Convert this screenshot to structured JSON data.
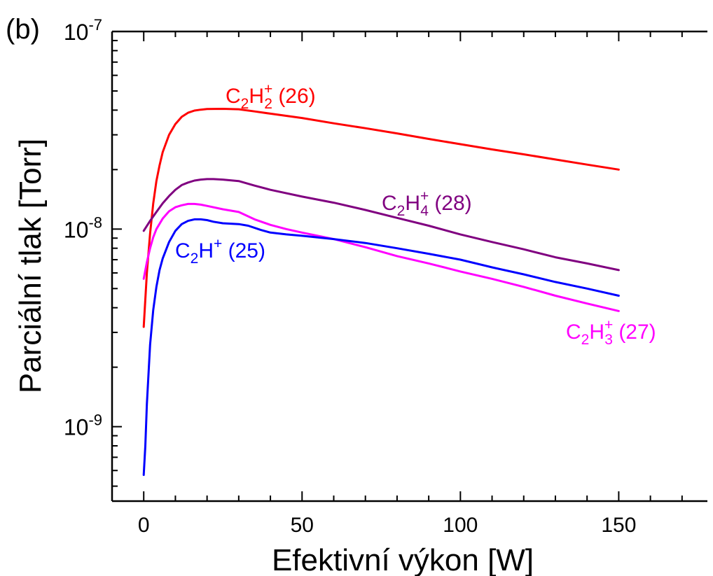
{
  "panel_label": "(b)",
  "chart_data": {
    "type": "line",
    "xlabel": "Efektivní výkon [W]",
    "ylabel": "Parciální tlak [Torr]",
    "x_scale": "linear",
    "y_scale": "log",
    "xlim": [
      -10,
      178
    ],
    "ylim": [
      4.2e-10,
      1e-07
    ],
    "x_ticks": [
      0,
      50,
      100,
      150
    ],
    "x_tick_labels": [
      "0",
      "50",
      "100",
      "150"
    ],
    "y_ticks": [
      1e-09,
      1e-08,
      1e-07
    ],
    "y_tick_labels": [
      {
        "base": "10",
        "exp": "-9"
      },
      {
        "base": "10",
        "exp": "-8"
      },
      {
        "base": "10",
        "exp": "-7"
      }
    ],
    "grid": false,
    "series": [
      {
        "id": "c2h2",
        "color": "#ff0000",
        "label": {
          "parts": [
            [
              "C",
              ""
            ],
            [
              "2",
              "sub"
            ],
            [
              "H",
              ""
            ],
            [
              "2",
              "subsup",
              "+"
            ],
            [
              " (26)",
              ""
            ]
          ]
        },
        "x": [
          0,
          1,
          2,
          3,
          4,
          5,
          6,
          8,
          10,
          12,
          14,
          16,
          18,
          20,
          25,
          30,
          35,
          40,
          50,
          60,
          70,
          80,
          90,
          100,
          110,
          120,
          130,
          140,
          150
        ],
        "y": [
          3.2e-09,
          6e-09,
          9.5e-09,
          1.35e-08,
          1.75e-08,
          2.1e-08,
          2.45e-08,
          3e-08,
          3.4e-08,
          3.7e-08,
          3.88e-08,
          3.98e-08,
          4.02e-08,
          4.05e-08,
          4.06e-08,
          4.04e-08,
          3.94e-08,
          3.84e-08,
          3.65e-08,
          3.43e-08,
          3.24e-08,
          3.05e-08,
          2.86e-08,
          2.69e-08,
          2.53e-08,
          2.39e-08,
          2.25e-08,
          2.12e-08,
          2e-08
        ]
      },
      {
        "id": "c2h4",
        "color": "#800080",
        "label": {
          "parts": [
            [
              "C",
              ""
            ],
            [
              "2",
              "sub"
            ],
            [
              "H",
              ""
            ],
            [
              "4",
              "subsup",
              "+"
            ],
            [
              " (28)",
              ""
            ]
          ]
        },
        "x": [
          0,
          2,
          4,
          6,
          8,
          10,
          12,
          14,
          16,
          18,
          20,
          22,
          25,
          30,
          35,
          40,
          50,
          60,
          70,
          80,
          90,
          100,
          110,
          120,
          130,
          140,
          150
        ],
        "y": [
          9.8e-09,
          1.1e-08,
          1.22e-08,
          1.35e-08,
          1.47e-08,
          1.58e-08,
          1.67e-08,
          1.72e-08,
          1.76e-08,
          1.78e-08,
          1.79e-08,
          1.79e-08,
          1.78e-08,
          1.75e-08,
          1.66e-08,
          1.58e-08,
          1.46e-08,
          1.36e-08,
          1.25e-08,
          1.14e-08,
          1.04e-08,
          9.4e-09,
          8.6e-09,
          7.9e-09,
          7.2e-09,
          6.7e-09,
          6.2e-09
        ]
      },
      {
        "id": "c2h3",
        "color": "#ff00ff",
        "label": {
          "parts": [
            [
              "C",
              ""
            ],
            [
              "2",
              "sub"
            ],
            [
              "H",
              ""
            ],
            [
              "3",
              "subsup",
              "+"
            ],
            [
              " (27)",
              ""
            ]
          ]
        },
        "x": [
          0,
          1,
          2,
          3,
          4,
          6,
          8,
          10,
          12,
          14,
          16,
          18,
          20,
          25,
          30,
          35,
          40,
          45,
          50,
          60,
          70,
          80,
          90,
          100,
          110,
          120,
          130,
          140,
          150
        ],
        "y": [
          5.6e-09,
          6.8e-09,
          8e-09,
          9.1e-09,
          1e-08,
          1.13e-08,
          1.23e-08,
          1.29e-08,
          1.32e-08,
          1.34e-08,
          1.34e-08,
          1.33e-08,
          1.31e-08,
          1.26e-08,
          1.22e-08,
          1.12e-08,
          1.05e-08,
          1e-08,
          9.6e-09,
          8.9e-09,
          8.1e-09,
          7.3e-09,
          6.7e-09,
          6.1e-09,
          5.6e-09,
          5.1e-09,
          4.6e-09,
          4.2e-09,
          3.85e-09
        ]
      },
      {
        "id": "c2h",
        "color": "#0000ff",
        "label": {
          "parts": [
            [
              "C",
              ""
            ],
            [
              "2",
              "sub"
            ],
            [
              "H",
              ""
            ],
            [
              "+",
              "sup"
            ],
            [
              " (25)",
              ""
            ]
          ]
        },
        "x": [
          0,
          0.5,
          1,
          2,
          3,
          4,
          5,
          6,
          8,
          10,
          12,
          14,
          16,
          18,
          20,
          22,
          25,
          30,
          33,
          37,
          40,
          45,
          50,
          60,
          70,
          80,
          90,
          100,
          110,
          120,
          130,
          140,
          150
        ],
        "y": [
          5.7e-10,
          8e-10,
          1.3e-09,
          2.6e-09,
          3.9e-09,
          5.1e-09,
          6.2e-09,
          7.1e-09,
          8.6e-09,
          9.8e-09,
          1.06e-08,
          1.1e-08,
          1.12e-08,
          1.12e-08,
          1.11e-08,
          1.09e-08,
          1.07e-08,
          1.06e-08,
          1.04e-08,
          9.9e-09,
          9.6e-09,
          9.4e-09,
          9.25e-09,
          8.9e-09,
          8.5e-09,
          8e-09,
          7.5e-09,
          7e-09,
          6.4e-09,
          5.9e-09,
          5.4e-09,
          5e-09,
          4.6e-09
        ]
      }
    ]
  }
}
